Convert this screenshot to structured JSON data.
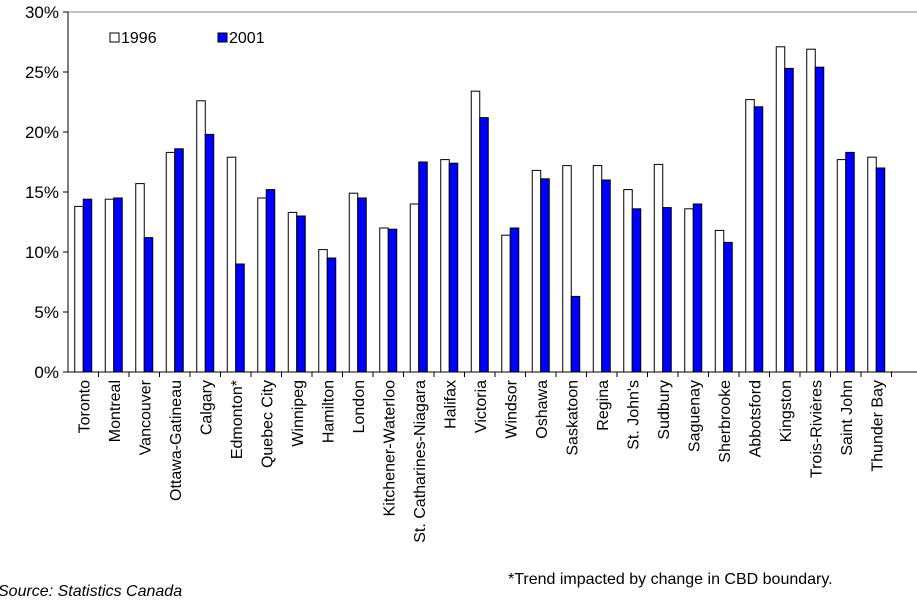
{
  "chart_data": {
    "type": "bar",
    "categories": [
      "Toronto",
      "Montreal",
      "Vancouver",
      "Ottawa-Gatineau",
      "Calgary",
      "Edmonton*",
      "Quebec City",
      "Winnipeg",
      "Hamilton",
      "London",
      "Kitchener-Waterloo",
      "St. Catharines-Niagara",
      "Halifax",
      "Victoria",
      "Windsor",
      "Oshawa",
      "Saskatoon",
      "Regina",
      "St. John's",
      "Sudbury",
      "Saguenay",
      "Sherbrooke",
      "Abbotsford",
      "Kingston",
      "Trois-Rivières",
      "Saint John",
      "Thunder Bay"
    ],
    "series": [
      {
        "name": "1996",
        "color": "#ffffff",
        "values": [
          13.8,
          14.4,
          15.7,
          18.3,
          22.6,
          17.9,
          14.5,
          13.3,
          10.2,
          14.9,
          12.0,
          14.0,
          17.7,
          23.4,
          11.4,
          16.8,
          17.2,
          17.2,
          15.2,
          17.3,
          13.6,
          11.8,
          22.7,
          27.1,
          26.9,
          17.7,
          17.9
        ]
      },
      {
        "name": "2001",
        "color": "#0000ff",
        "values": [
          14.4,
          14.5,
          11.2,
          18.6,
          19.8,
          9.0,
          15.2,
          13.0,
          9.5,
          14.5,
          11.9,
          17.5,
          17.4,
          21.2,
          12.0,
          16.1,
          6.3,
          16.0,
          13.6,
          13.7,
          14.0,
          10.8,
          22.1,
          25.3,
          25.4,
          18.3,
          17.0
        ]
      }
    ],
    "y_ticks": [
      "0%",
      "5%",
      "10%",
      "15%",
      "20%",
      "25%",
      "30%"
    ],
    "ylim": [
      0,
      30
    ],
    "grid": false,
    "legend_position": "top-left",
    "note": "*Trend impacted by change in CBD boundary.",
    "source": "Source: Statistics Canada"
  }
}
